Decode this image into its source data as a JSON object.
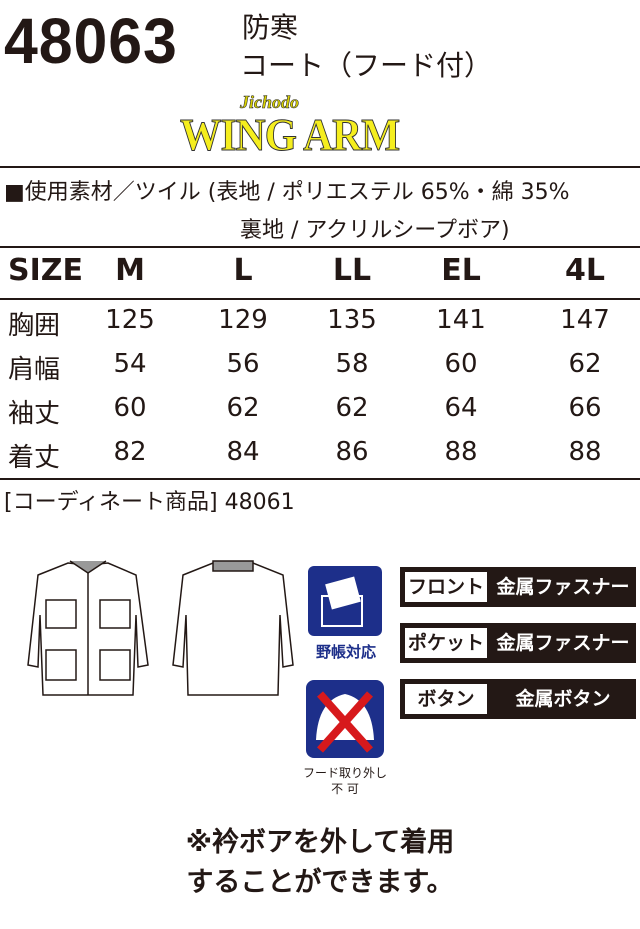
{
  "product": {
    "code": "48063",
    "category_line1": "防寒",
    "category_line2": "コート（フード付）"
  },
  "brand": {
    "sub": "Jichodo",
    "name": "WING ARM",
    "colors": {
      "logo": "#f5ee1e"
    }
  },
  "material": {
    "line1": "■使用素材／ツイル (表地 / ポリエステル 65%・綿 35%",
    "line2": "裏地 / アクリルシープボア)"
  },
  "size_table": {
    "headers": [
      "SIZE",
      "M",
      "L",
      "LL",
      "EL",
      "4L"
    ],
    "rows": [
      {
        "label": "胸囲",
        "values": [
          "125",
          "129",
          "135",
          "141",
          "147"
        ]
      },
      {
        "label": "肩幅",
        "values": [
          "54",
          "56",
          "58",
          "60",
          "62"
        ]
      },
      {
        "label": "袖丈",
        "values": [
          "60",
          "62",
          "62",
          "64",
          "66"
        ]
      },
      {
        "label": "着丈",
        "values": [
          "82",
          "84",
          "86",
          "88",
          "88"
        ]
      }
    ]
  },
  "coordinate": "[コーディネート商品] 48061",
  "icons": {
    "notebook_label": "野帳対応",
    "hood_label_1": "フード取り外し",
    "hood_label_2": "不 可",
    "colors": {
      "icon_bg": "#1d2f8a",
      "cross": "#d7191c"
    }
  },
  "specs": [
    {
      "key": "フロント",
      "value": "金属ファスナー"
    },
    {
      "key": "ポケット",
      "value": "金属ファスナー"
    },
    {
      "key": "ボタン",
      "value": "金属ボタン"
    }
  ],
  "note": {
    "line1": "※衿ボアを外して着用",
    "line2": "することができます。"
  }
}
